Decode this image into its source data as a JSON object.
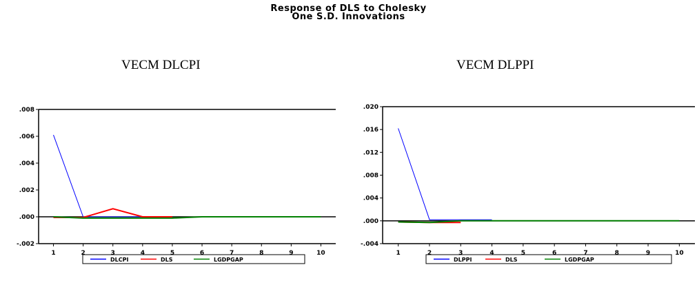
{
  "figure": {
    "title_line1": "Response of DLS to Cholesky",
    "title_line2": "One S.D. Innovations"
  },
  "chart_data": [
    {
      "type": "line",
      "panel_title": "VECM DLCPI",
      "x": [
        1,
        2,
        3,
        4,
        5,
        6,
        7,
        8,
        9,
        10
      ],
      "x_tick_labels": [
        "1",
        "2",
        "3",
        "4",
        "5",
        "6",
        "7",
        "8",
        "9",
        "10"
      ],
      "y_tick_labels": [
        ".008",
        ".006",
        ".004",
        ".002",
        ".000",
        "-.002"
      ],
      "y_ticks": [
        0.008,
        0.006,
        0.004,
        0.002,
        0.0,
        -0.002
      ],
      "ylim": [
        -0.002,
        0.008
      ],
      "xlim": [
        0.5,
        10.5
      ],
      "series": [
        {
          "name": "DLCPI",
          "color": "#0000ff",
          "values": [
            0.0061,
            0.0,
            0.0,
            0.0,
            null,
            null,
            null,
            null,
            null,
            null
          ]
        },
        {
          "name": "DLS",
          "color": "#ff0000",
          "values": [
            -5e-05,
            -5e-05,
            0.0006,
            0.0,
            0.0,
            null,
            null,
            null,
            null,
            null
          ]
        },
        {
          "name": "LGDPGAP",
          "color": "#008000",
          "values": [
            0.0,
            -0.0001,
            -0.0001,
            -0.0001,
            -0.0001,
            0.0,
            0.0,
            0.0,
            0.0,
            0.0
          ]
        }
      ],
      "legend_position": "bottom"
    },
    {
      "type": "line",
      "panel_title": "VECM DLPPI",
      "x": [
        1,
        2,
        3,
        4,
        5,
        6,
        7,
        8,
        9,
        10
      ],
      "x_tick_labels": [
        "1",
        "2",
        "3",
        "4",
        "5",
        "6",
        "7",
        "8",
        "9",
        "10"
      ],
      "y_tick_labels": [
        ".020",
        ".016",
        ".012",
        ".008",
        ".004",
        ".000",
        "-.004"
      ],
      "y_ticks": [
        0.02,
        0.016,
        0.012,
        0.008,
        0.004,
        0.0,
        -0.004
      ],
      "ylim": [
        -0.004,
        0.02
      ],
      "xlim": [
        0.5,
        10.5
      ],
      "series": [
        {
          "name": "DLPPI",
          "color": "#0000ff",
          "values": [
            0.0162,
            0.0002,
            0.0002,
            0.0002,
            null,
            null,
            null,
            null,
            null,
            null
          ]
        },
        {
          "name": "DLS",
          "color": "#ff0000",
          "values": [
            -0.0002,
            -0.0003,
            -0.0003,
            null,
            null,
            null,
            null,
            null,
            null,
            null
          ]
        },
        {
          "name": "LGDPGAP",
          "color": "#008000",
          "values": [
            -0.0002,
            -0.0003,
            0.0,
            0.0,
            0.0,
            0.0,
            0.0,
            0.0,
            0.0,
            0.0
          ]
        }
      ],
      "legend_position": "bottom"
    }
  ]
}
